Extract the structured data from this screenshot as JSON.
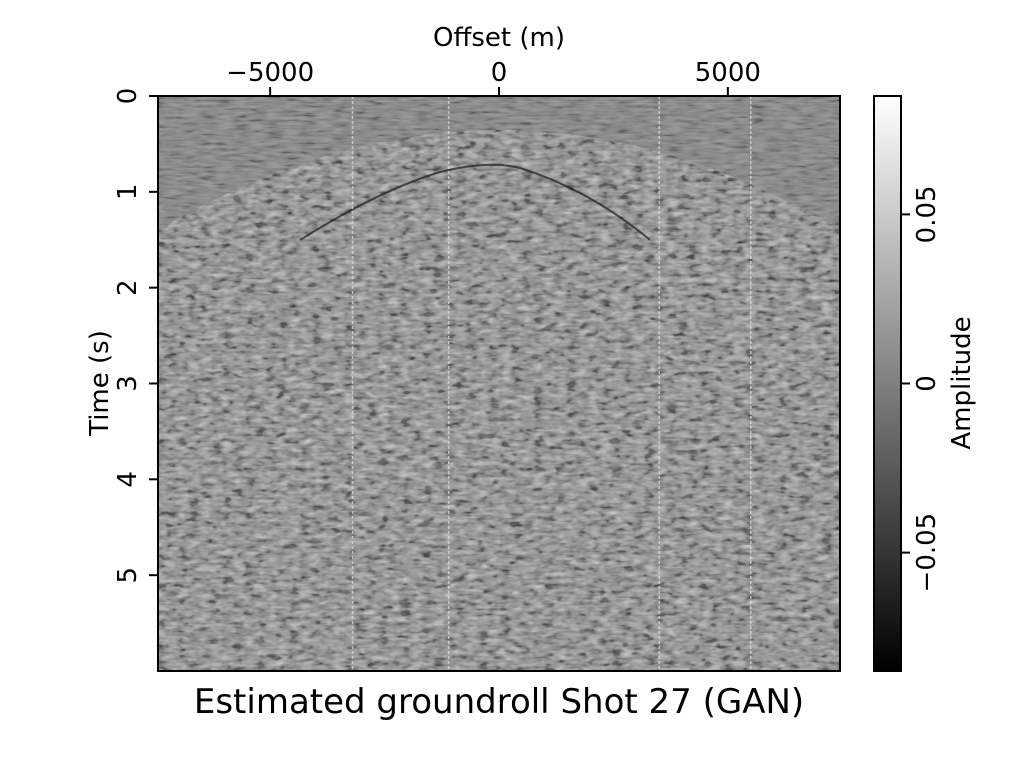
{
  "chart_data": {
    "type": "heatmap",
    "title": "Estimated groundroll Shot 27 (GAN)",
    "xlabel": "Offset (m)",
    "ylabel": "Time (s)",
    "x_axis_position": "top",
    "xlim": [
      -7450,
      7450
    ],
    "ylim": [
      0,
      6
    ],
    "y_inverted": true,
    "xticks": [
      -5000,
      0,
      5000
    ],
    "xtick_labels": [
      "−5000",
      "0",
      "5000"
    ],
    "yticks": [
      0,
      1,
      2,
      3,
      4,
      5
    ],
    "ytick_labels": [
      "0",
      "1",
      "2",
      "3",
      "4",
      "5"
    ],
    "colormap": "grayscale",
    "colorbar": {
      "label": "Amplitude",
      "orientation": "vertical",
      "placement": "right",
      "range": [
        -0.085,
        0.085
      ],
      "ticks": [
        -0.05,
        0,
        0.05
      ],
      "tick_labels": [
        "−0.05",
        "0",
        "0.05"
      ]
    },
    "features": {
      "groundroll_apex": {
        "offset": 0,
        "time": 0.75
      },
      "dead_traces_offsets": [
        -3200,
        -1100,
        3500,
        5500
      ],
      "grid": false
    }
  }
}
